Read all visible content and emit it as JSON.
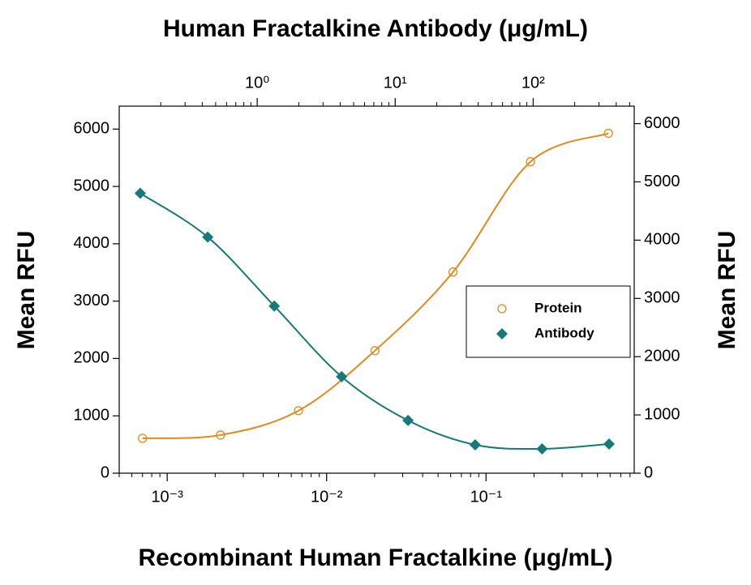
{
  "chart_data": {
    "type": "scatter",
    "title": "Human Fractalkine Antibody (μg/mL)",
    "xlabel": "Recombinant Human Fractalkine (μg/mL)",
    "ylabel": "Mean RFU",
    "y2label": "Mean RFU",
    "xscale": "log",
    "x2scale": "log",
    "xlim": [
      0.0005,
      0.85
    ],
    "xticks": [
      {
        "value": 0.001,
        "label": "10⁻³"
      },
      {
        "value": 0.01,
        "label": "10⁻²"
      },
      {
        "value": 0.1,
        "label": "10⁻¹"
      }
    ],
    "x2lim": [
      0.1,
      540
    ],
    "x2ticks": [
      {
        "value": 1,
        "label": "10⁰"
      },
      {
        "value": 10,
        "label": "10¹"
      },
      {
        "value": 100,
        "label": "10²"
      }
    ],
    "ylim": [
      0,
      6400
    ],
    "yticks": [
      0,
      1000,
      2000,
      3000,
      4000,
      5000,
      6000
    ],
    "y2lim": [
      0,
      6300
    ],
    "y2ticks": [
      0,
      1000,
      2000,
      3000,
      4000,
      5000,
      6000
    ],
    "minor_ticks": true,
    "legend": "right",
    "series": [
      {
        "name": "Protein",
        "color": "#e08a1e",
        "marker": "circle",
        "xaxis": "x",
        "x": [
          0.0007,
          0.00216,
          0.00666,
          0.0201,
          0.0621,
          0.19,
          0.586
        ],
        "values": [
          608,
          665,
          1090,
          2136,
          3508,
          5431,
          5926
        ]
      },
      {
        "name": "Antibody",
        "color": "#16797a",
        "marker": "diamond",
        "xaxis": "x2",
        "axis": "y2",
        "x": [
          0.142,
          0.438,
          1.33,
          4.09,
          12.4,
          38,
          116,
          355
        ],
        "values": [
          4805,
          4053,
          2869,
          1657,
          905,
          487,
          418,
          501
        ]
      }
    ]
  }
}
